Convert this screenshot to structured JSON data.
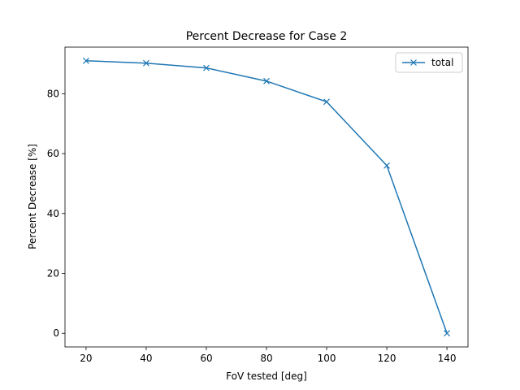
{
  "chart_data": {
    "type": "line",
    "title": "Percent Decrease for Case 2",
    "xlabel": "FoV tested [deg]",
    "ylabel": "Percent Decrease [%]",
    "x": [
      20,
      40,
      60,
      80,
      100,
      120,
      140
    ],
    "series": [
      {
        "name": "total",
        "marker": "x",
        "color": "#1f77b4",
        "values": [
          91.0,
          90.2,
          88.6,
          84.2,
          77.3,
          56.0,
          0.0
        ]
      }
    ],
    "xlim": [
      13,
      147
    ],
    "ylim": [
      -4.55,
      95.55
    ],
    "xticks": [
      20,
      40,
      60,
      80,
      100,
      120,
      140
    ],
    "yticks": [
      0,
      20,
      40,
      60,
      80
    ],
    "grid": false,
    "legend": "upper-right"
  }
}
